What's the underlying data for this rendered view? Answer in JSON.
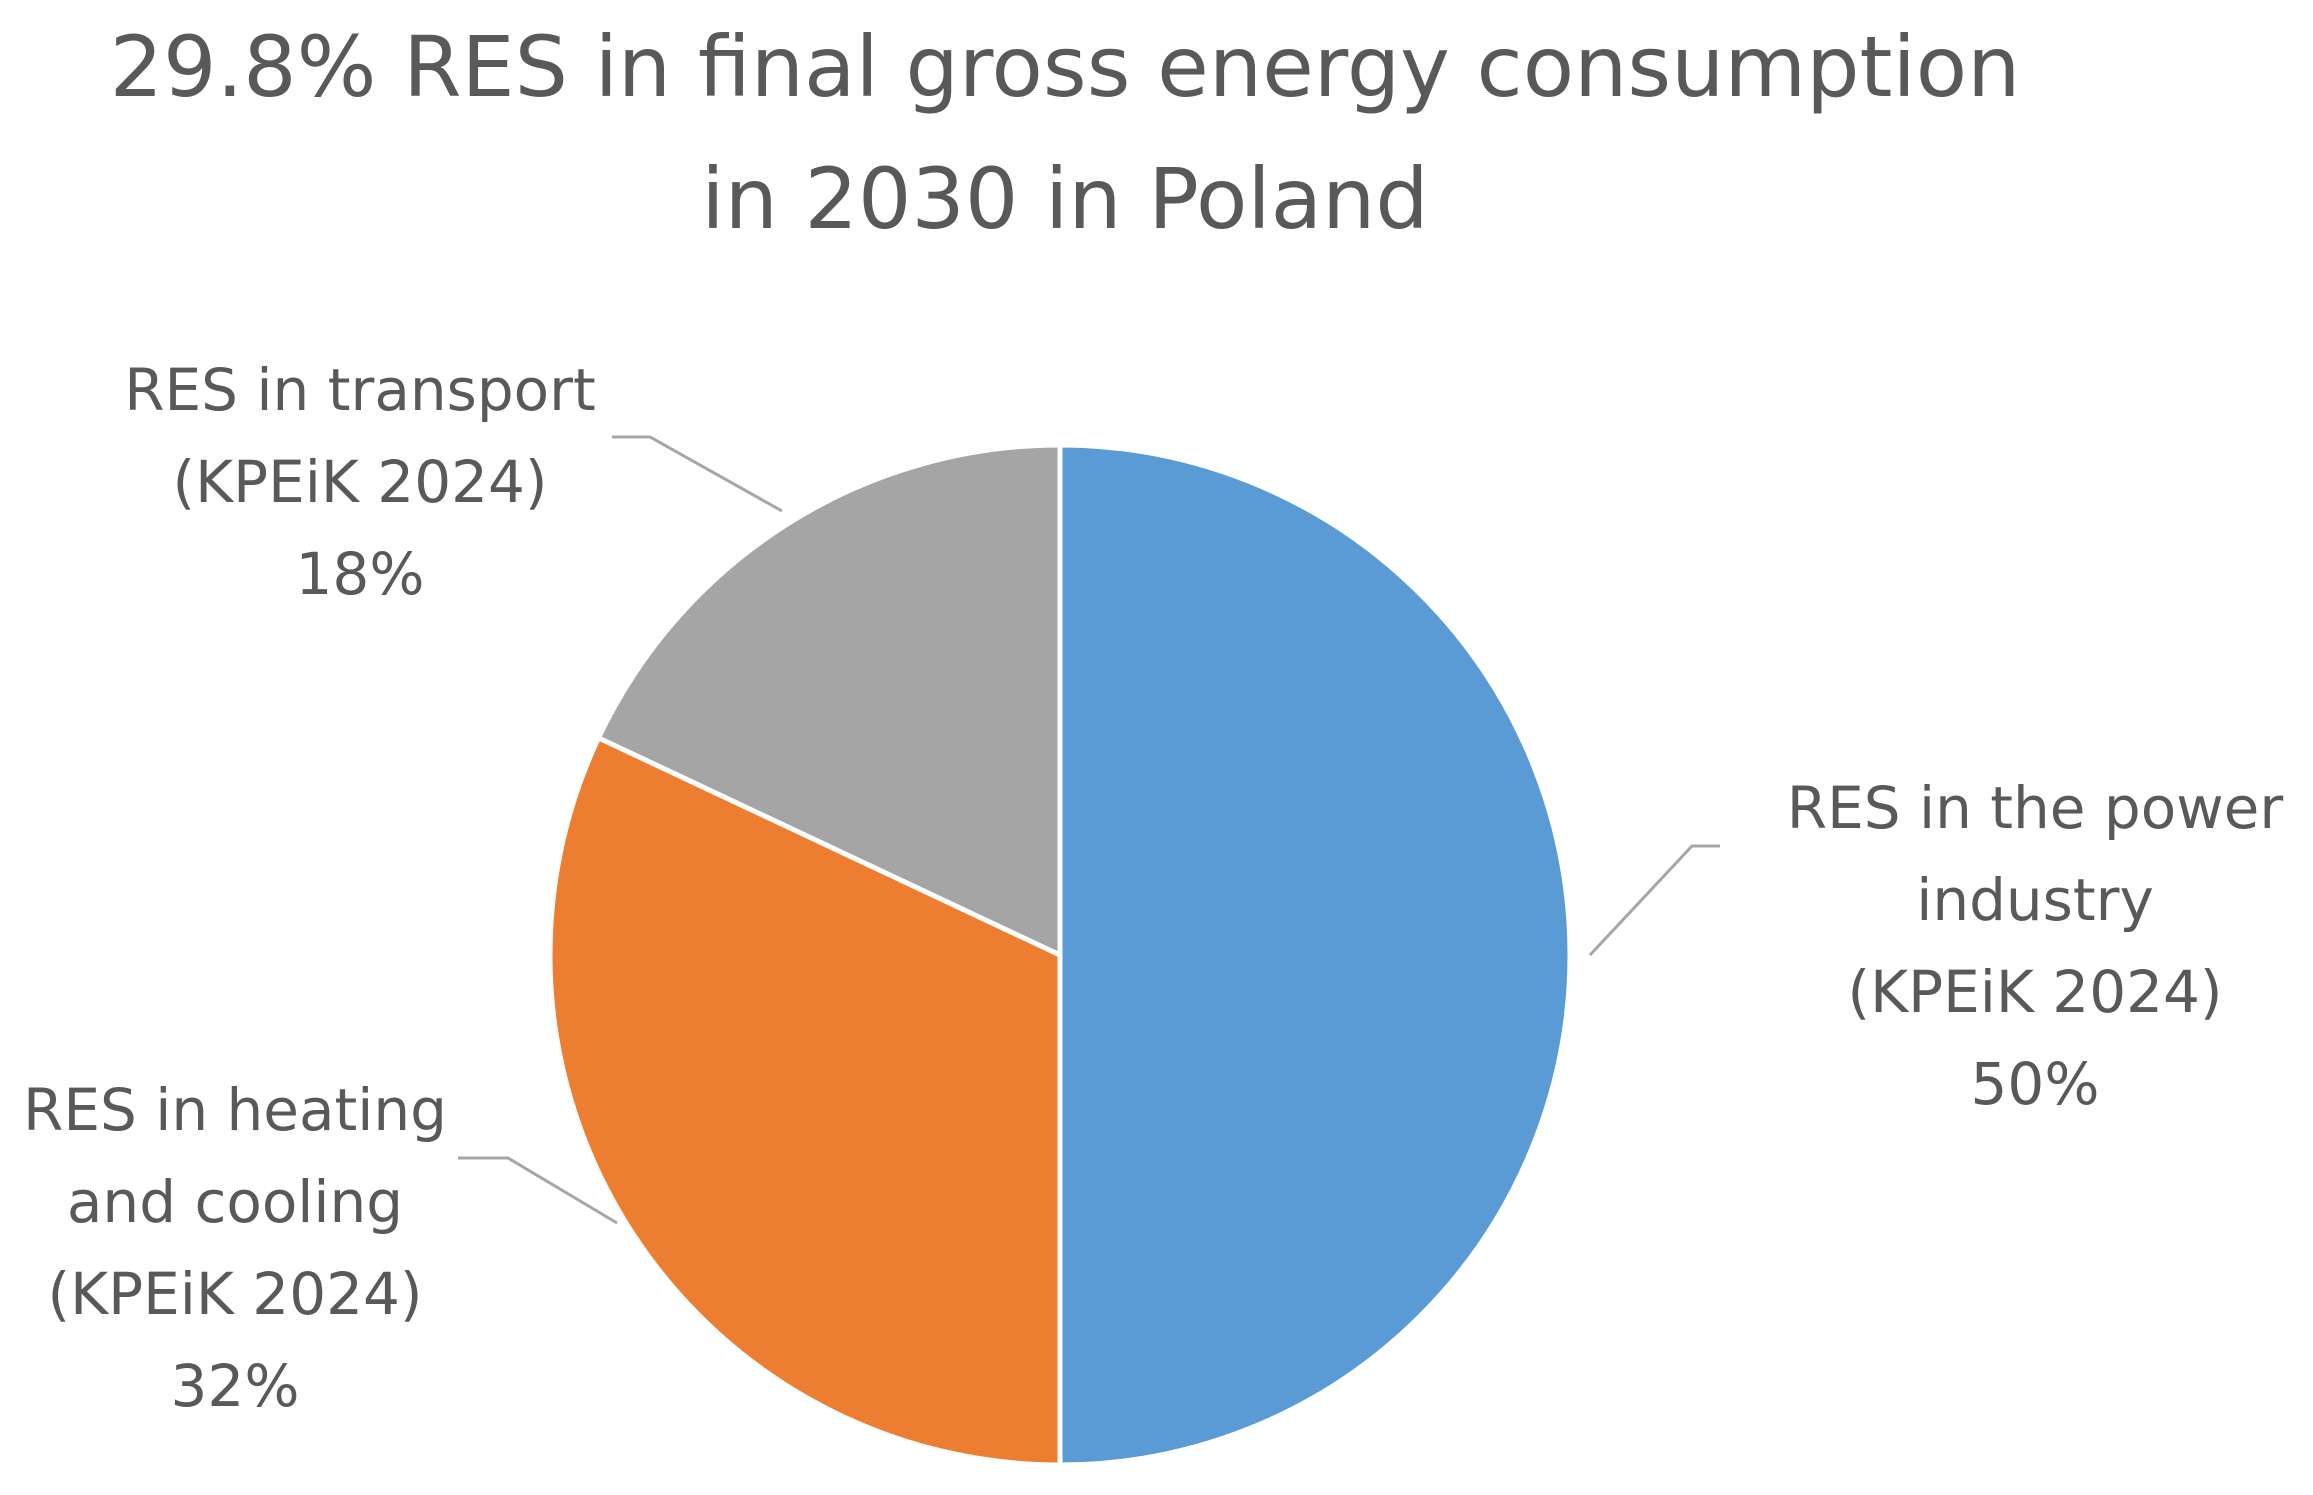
{
  "chart_data": {
    "type": "pie",
    "title": "29.8% RES in final gross energy consumption in 2030 in Poland",
    "title_lines": [
      "29.8% RES in final gross energy consumption",
      "in 2030 in Poland"
    ],
    "legend": "none",
    "slices": [
      {
        "category": "RES in the power industry (KPEiK 2024)",
        "label_lines": [
          "RES in the power",
          "industry",
          "(KPEiK 2024)"
        ],
        "value": 50,
        "value_label": "50%",
        "color": "#5B9BD5"
      },
      {
        "category": "RES in heating and cooling (KPEiK 2024)",
        "label_lines": [
          "RES in heating",
          "and cooling",
          "(KPEiK 2024)"
        ],
        "value": 32,
        "value_label": "32%",
        "color": "#ED7D31"
      },
      {
        "category": "RES in transport (KPEiK 2024)",
        "label_lines": [
          "RES in transport",
          "(KPEiK 2024)"
        ],
        "value": 18,
        "value_label": "18%",
        "color": "#A5A5A5"
      }
    ]
  }
}
